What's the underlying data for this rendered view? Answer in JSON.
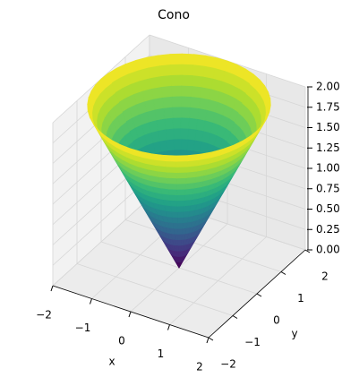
{
  "chart_data": {
    "type": "surface",
    "title": "Cono",
    "xlabel": "x",
    "ylabel": "y",
    "colormap": "viridis",
    "r": [
      0,
      0.1,
      0.2,
      0.3,
      0.4,
      0.5,
      0.6,
      0.7,
      0.8,
      0.9,
      1.0,
      1.1,
      1.2,
      1.3,
      1.4,
      1.5,
      1.6,
      1.7,
      1.8,
      1.9,
      2.0
    ],
    "z": [
      0,
      0.1,
      0.2,
      0.3,
      0.4,
      0.5,
      0.6,
      0.7,
      0.8,
      0.9,
      1.0,
      1.1,
      1.2,
      1.3,
      1.4,
      1.5,
      1.6,
      1.7,
      1.8,
      1.9,
      2.0
    ],
    "xlim": [
      -2,
      2
    ],
    "ylim": [
      -2,
      2
    ],
    "zlim": [
      0,
      2
    ],
    "xticks": [
      {
        "value": -2,
        "label": "−2"
      },
      {
        "value": -1,
        "label": "−1"
      },
      0,
      1,
      2
    ],
    "yticks": [
      {
        "value": -2,
        "label": "−2"
      },
      {
        "value": -1,
        "label": "−1"
      },
      0,
      1,
      2
    ],
    "zticks": [
      {
        "value": 0,
        "label": "0.00"
      },
      {
        "value": 0.25,
        "label": "0.25"
      },
      {
        "value": 0.5,
        "label": "0.50"
      },
      {
        "value": 0.75,
        "label": "0.75"
      },
      {
        "value": 1,
        "label": "1.00"
      },
      {
        "value": 1.25,
        "label": "1.25"
      },
      {
        "value": 1.5,
        "label": "1.50"
      },
      {
        "value": 1.75,
        "label": "1.75"
      },
      {
        "value": 2,
        "label": "2.00"
      }
    ],
    "grid": true
  }
}
